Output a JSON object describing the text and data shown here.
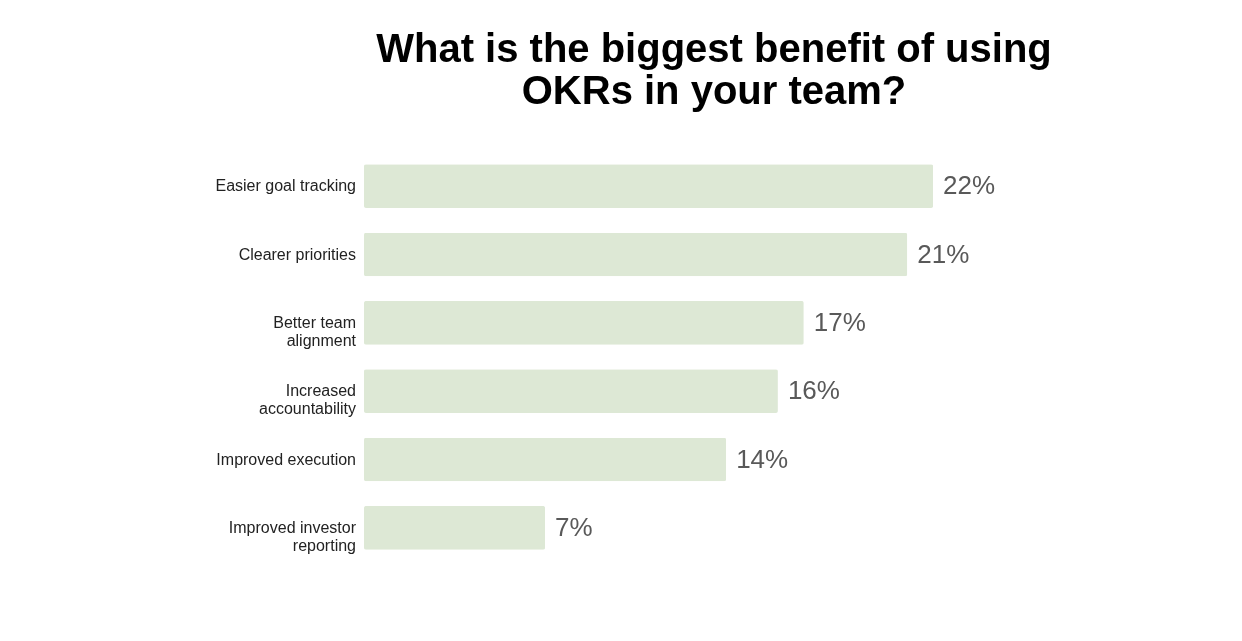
{
  "chart_data": {
    "type": "bar",
    "orientation": "horizontal",
    "title": "What is the biggest benefit of using OKRs in your team?",
    "categories": [
      "Easier goal tracking",
      "Clearer priorities",
      "Better team alignment",
      "Increased accountability",
      "Improved execution",
      "Improved investor reporting"
    ],
    "values": [
      22,
      21,
      17,
      16,
      14,
      7
    ],
    "value_labels": [
      "22%",
      "21%",
      "17%",
      "16%",
      "14%",
      "7%"
    ],
    "color": "#dde8d5"
  }
}
